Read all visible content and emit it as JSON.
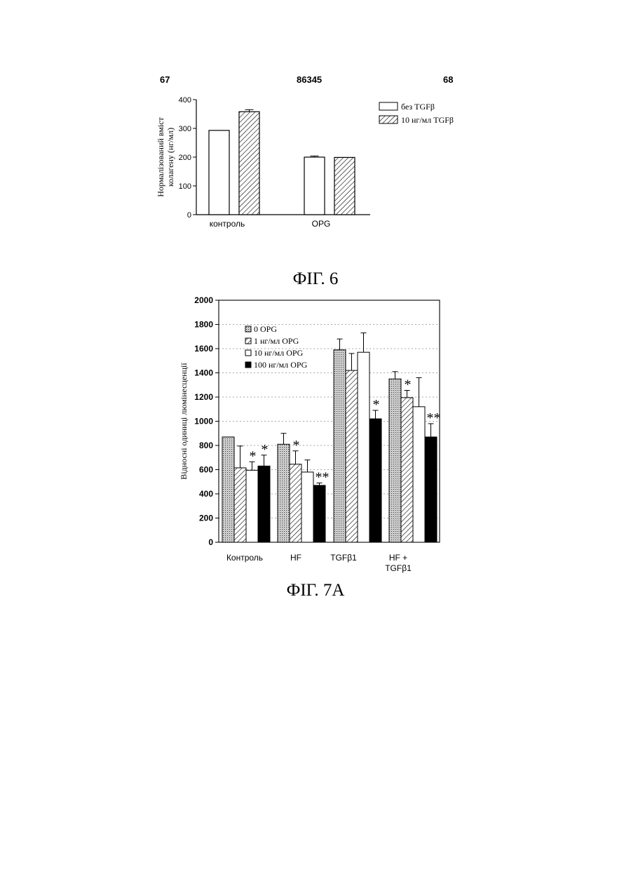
{
  "header": {
    "page_left": "67",
    "page_center": "86345",
    "page_right": "68"
  },
  "figures": {
    "fig6_caption": "ФІГ. 6",
    "fig7_caption": "ФІГ. 7А"
  },
  "chart_data": [
    {
      "type": "bar",
      "ylabel": "Нормалізований вміст колагену (нг/мл)",
      "ylabel_lines": [
        "Нормалізований вміст",
        "колагену (нг/мл)"
      ],
      "ylim": [
        0,
        400
      ],
      "yticks": [
        0,
        100,
        200,
        300,
        400
      ],
      "categories": [
        "контроль",
        "OPG"
      ],
      "legend_position": "top-right",
      "series": [
        {
          "name": "без TGFβ",
          "values": [
            293,
            200
          ],
          "errors": [
            0,
            4
          ],
          "pattern": "open"
        },
        {
          "name": "10 нг/мл TGFβ",
          "values": [
            358,
            199
          ],
          "errors": [
            7,
            0
          ],
          "pattern": "hatch"
        }
      ]
    },
    {
      "type": "bar",
      "ylabel": "Відносні одиниці люмінесценції",
      "ylim": [
        0,
        2000
      ],
      "yticks": [
        0,
        200,
        400,
        600,
        800,
        1000,
        1200,
        1400,
        1600,
        1800,
        2000
      ],
      "categories": [
        "Контроль",
        "HF",
        "TGFβ1",
        "HF +\nTGFβ1"
      ],
      "category_lines": [
        [
          "Контроль"
        ],
        [
          "HF"
        ],
        [
          "TGFβ1"
        ],
        [
          "HF +",
          "TGFβ1"
        ]
      ],
      "legend_position": "top-left",
      "series": [
        {
          "name": "0 OPG",
          "values": [
            870,
            810,
            1590,
            1350
          ],
          "errors": [
            0,
            90,
            90,
            60
          ],
          "pattern": "dots"
        },
        {
          "name": "1 нг/мл OPG",
          "values": [
            615,
            645,
            1420,
            1195
          ],
          "errors": [
            180,
            110,
            140,
            60
          ],
          "pattern": "hatch"
        },
        {
          "name": "10 нг/мл OPG",
          "values": [
            595,
            580,
            1570,
            1120
          ],
          "errors": [
            70,
            100,
            160,
            240
          ],
          "pattern": "open"
        },
        {
          "name": "100 нг/мл OPG",
          "values": [
            630,
            470,
            1020,
            870
          ],
          "errors": [
            90,
            20,
            70,
            110
          ],
          "pattern": "solid"
        }
      ],
      "significance": [
        {
          "category": "Контроль",
          "series": "10 нг/мл OPG",
          "label": "*"
        },
        {
          "category": "Контроль",
          "series": "100 нг/мл OPG",
          "label": "*"
        },
        {
          "category": "HF",
          "series": "1 нг/мл OPG",
          "label": "*"
        },
        {
          "category": "HF",
          "series": "100 нг/мл OPG",
          "label": "**"
        },
        {
          "category": "TGFβ1",
          "series": "100 нг/мл OPG",
          "label": "*"
        },
        {
          "category": "HF +\nTGFβ1",
          "series": "1 нг/мл OPG",
          "label": "*"
        },
        {
          "category": "HF +\nTGFβ1",
          "series": "100 нг/мл OPG",
          "label": "**"
        }
      ]
    }
  ]
}
